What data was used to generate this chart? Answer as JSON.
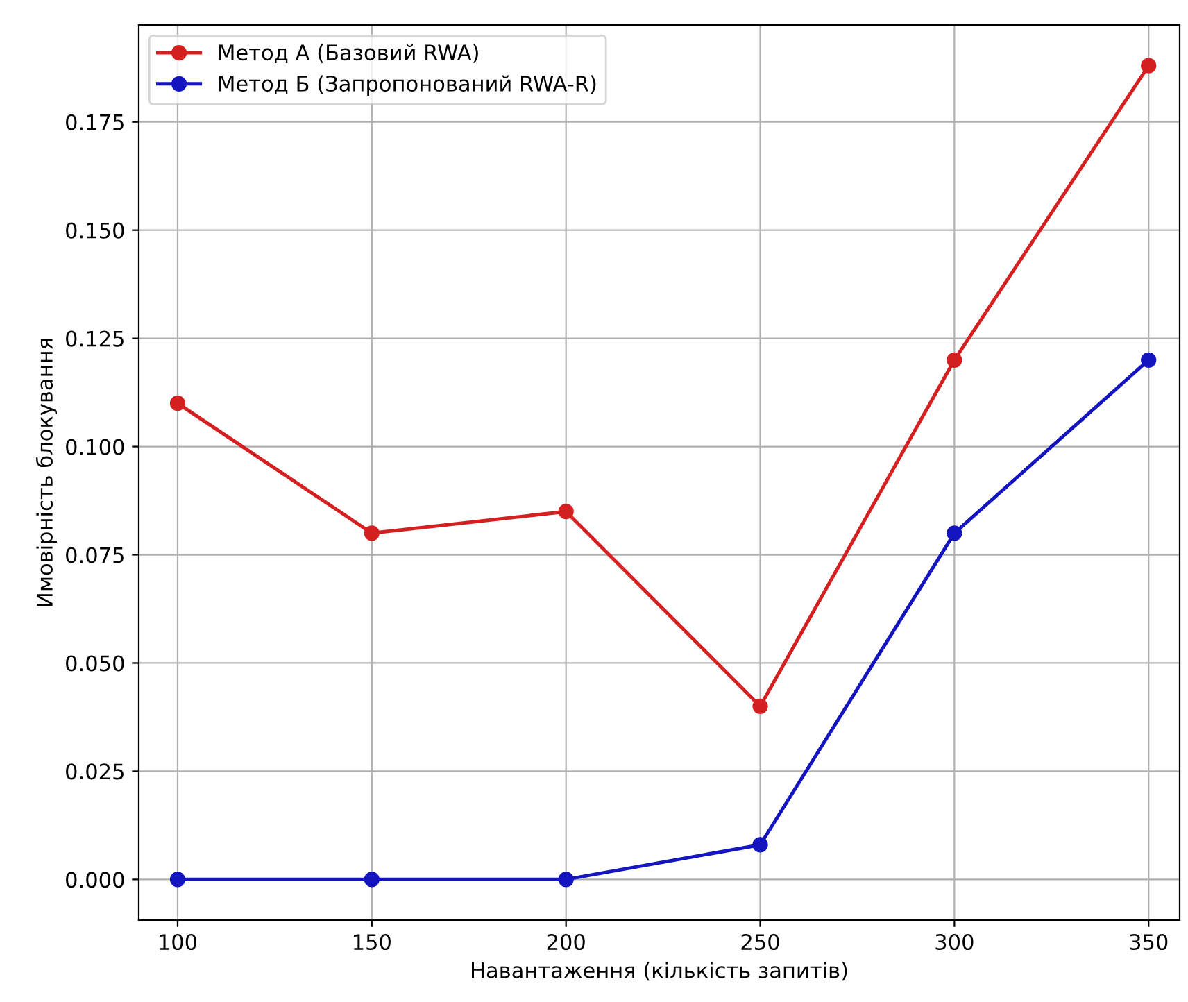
{
  "chart_data": {
    "type": "line",
    "xlabel": "Навантаження (кількість запитів)",
    "ylabel": "Имовірність блокування",
    "x": [
      100,
      150,
      200,
      250,
      300,
      350
    ],
    "series": [
      {
        "name": "Метод А (Базовий RWA)",
        "color": "#d42020",
        "values": [
          0.11,
          0.08,
          0.085,
          0.04,
          0.12,
          0.188
        ]
      },
      {
        "name": "Метод Б (Запропонований RWA-R)",
        "color": "#1515c0",
        "values": [
          0.0,
          0.0,
          0.0,
          0.008,
          0.08,
          0.12
        ]
      }
    ],
    "xlim": [
      90,
      358
    ],
    "xticks": [
      100,
      150,
      200,
      250,
      300,
      350
    ],
    "ylim": [
      -0.0094,
      0.1974
    ],
    "yticks": [
      {
        "value": 0,
        "label": "0.000"
      },
      {
        "value": 0.025,
        "label": "0.025"
      },
      {
        "value": 0.05,
        "label": "0.050"
      },
      {
        "value": 0.075,
        "label": "0.075"
      },
      {
        "value": 0.1,
        "label": "0.100"
      },
      {
        "value": 0.125,
        "label": "0.125"
      },
      {
        "value": 0.15,
        "label": "0.150"
      },
      {
        "value": 0.175,
        "label": "0.175"
      }
    ],
    "grid": true,
    "legend": "top left",
    "marker": "circle",
    "line_style": "solid"
  }
}
